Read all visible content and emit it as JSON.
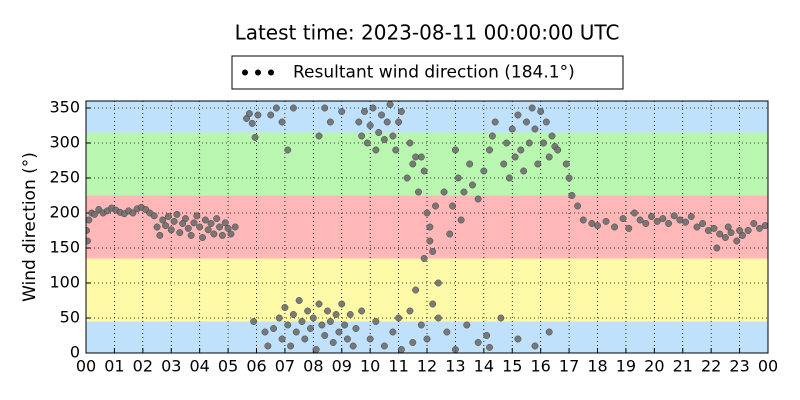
{
  "chart_data": {
    "type": "scatter",
    "title": "Latest time: 2023-08-11 00:00:00 UTC",
    "ylabel": "Wind direction (°)",
    "legend_loc": "upper center",
    "grid": true,
    "bands": [
      {
        "from": 0,
        "to": 45,
        "color": "#bfe1fb"
      },
      {
        "from": 45,
        "to": 135,
        "color": "#fffaa8"
      },
      {
        "from": 135,
        "to": 225,
        "color": "#ffb7b7"
      },
      {
        "from": 225,
        "to": 315,
        "color": "#b9f7b1"
      },
      {
        "from": 315,
        "to": 360,
        "color": "#bfe1fb"
      }
    ],
    "xlim": [
      0,
      24
    ],
    "ylim": [
      0,
      360
    ],
    "xticks": [
      {
        "value": 0,
        "label": "00"
      },
      {
        "value": 1,
        "label": "01"
      },
      {
        "value": 2,
        "label": "02"
      },
      {
        "value": 3,
        "label": "03"
      },
      {
        "value": 4,
        "label": "04"
      },
      {
        "value": 5,
        "label": "05"
      },
      {
        "value": 6,
        "label": "06"
      },
      {
        "value": 7,
        "label": "07"
      },
      {
        "value": 8,
        "label": "08"
      },
      {
        "value": 9,
        "label": "09"
      },
      {
        "value": 10,
        "label": "10"
      },
      {
        "value": 11,
        "label": "11"
      },
      {
        "value": 12,
        "label": "12"
      },
      {
        "value": 13,
        "label": "13"
      },
      {
        "value": 14,
        "label": "14"
      },
      {
        "value": 15,
        "label": "15"
      },
      {
        "value": 16,
        "label": "16"
      },
      {
        "value": 17,
        "label": "17"
      },
      {
        "value": 18,
        "label": "18"
      },
      {
        "value": 19,
        "label": "19"
      },
      {
        "value": 20,
        "label": "20"
      },
      {
        "value": 21,
        "label": "21"
      },
      {
        "value": 22,
        "label": "22"
      },
      {
        "value": 23,
        "label": "23"
      },
      {
        "value": 24,
        "label": "00"
      }
    ],
    "yticks": [
      0,
      50,
      100,
      150,
      200,
      250,
      300,
      350
    ],
    "series": [
      {
        "name": "Resultant wind direction (184.1°)",
        "color": "#6e6e6e",
        "x": [
          0.02,
          0.05,
          0.1,
          0.2,
          0.3,
          0.45,
          0.6,
          0.75,
          0.9,
          1.05,
          1.2,
          1.35,
          1.5,
          1.65,
          1.8,
          1.95,
          2.1,
          2.25,
          2.4,
          2.5,
          2.6,
          2.7,
          2.8,
          2.9,
          3.0,
          3.1,
          3.2,
          3.3,
          3.4,
          3.5,
          3.6,
          3.7,
          3.8,
          3.9,
          4.0,
          4.1,
          4.2,
          4.3,
          4.4,
          4.5,
          4.6,
          4.7,
          4.8,
          4.9,
          5.0,
          5.1,
          5.25,
          5.65,
          5.75,
          5.85,
          5.95,
          6.05,
          5.9,
          6.3,
          6.5,
          6.7,
          6.9,
          7.1,
          7.3,
          6.4,
          6.6,
          6.8,
          6.9,
          7.0,
          7.1,
          7.2,
          7.3,
          7.4,
          7.5,
          7.6,
          7.7,
          7.8,
          7.9,
          8.0,
          8.1,
          8.2,
          8.3,
          8.4,
          8.5,
          8.6,
          8.7,
          8.8,
          8.9,
          9.0,
          9.1,
          9.2,
          9.3,
          9.4,
          9.5,
          8.2,
          8.6,
          9.0,
          8.4,
          9.6,
          9.7,
          9.8,
          9.9,
          10.0,
          10.1,
          10.2,
          10.3,
          10.4,
          10.5,
          10.6,
          10.7,
          10.8,
          10.9,
          11.0,
          11.1,
          9.7,
          10.0,
          10.2,
          10.5,
          10.8,
          11.0,
          11.1,
          11.3,
          11.4,
          11.5,
          11.6,
          11.7,
          11.8,
          11.9,
          12.0,
          12.1,
          11.9,
          12.1,
          12.2,
          12.3,
          11.4,
          11.6,
          11.8,
          12.0,
          12.2,
          12.4,
          11.5,
          12.4,
          12.6,
          12.8,
          12.9,
          13.0,
          13.1,
          13.2,
          13.3,
          13.5,
          13.6,
          13.8,
          14.0,
          14.2,
          14.3,
          14.4,
          12.7,
          13.0,
          13.4,
          13.8,
          14.1,
          14.2,
          14.6,
          14.7,
          14.8,
          14.9,
          15.0,
          15.1,
          15.2,
          15.3,
          15.4,
          15.5,
          15.6,
          15.7,
          15.8,
          15.9,
          16.0,
          16.1,
          16.2,
          16.3,
          16.4,
          16.5,
          16.6,
          15.2,
          15.8,
          16.3,
          16.9,
          17.0,
          17.1,
          17.3,
          17.5,
          17.8,
          18.0,
          18.3,
          18.6,
          18.9,
          19.1,
          19.3,
          19.5,
          19.7,
          19.9,
          20.1,
          20.3,
          20.5,
          20.7,
          20.9,
          21.1,
          21.3,
          21.5,
          21.7,
          21.9,
          22.1,
          22.3,
          22.5,
          22.7,
          22.9,
          23.1,
          23.3,
          23.5,
          23.7,
          23.9,
          22.2,
          22.6,
          23.0
        ],
        "values": [
          175,
          160,
          190,
          200,
          198,
          205,
          200,
          203,
          207,
          204,
          201,
          199,
          203,
          200,
          206,
          208,
          205,
          200,
          196,
          180,
          168,
          190,
          182,
          195,
          176,
          188,
          198,
          172,
          185,
          192,
          178,
          168,
          186,
          196,
          180,
          165,
          190,
          176,
          185,
          170,
          192,
          180,
          168,
          186,
          178,
          170,
          180,
          335,
          342,
          328,
          308,
          340,
          45,
          30,
          340,
          350,
          330,
          290,
          350,
          10,
          35,
          50,
          20,
          65,
          40,
          10,
          55,
          30,
          75,
          45,
          20,
          60,
          35,
          50,
          5,
          70,
          40,
          25,
          60,
          45,
          15,
          55,
          30,
          70,
          40,
          20,
          55,
          10,
          35,
          310,
          330,
          345,
          350,
          330,
          310,
          345,
          300,
          325,
          350,
          290,
          315,
          340,
          305,
          330,
          355,
          310,
          290,
          330,
          345,
          60,
          20,
          45,
          10,
          30,
          50,
          5,
          250,
          300,
          270,
          280,
          230,
          280,
          260,
          200,
          180,
          135,
          160,
          145,
          210,
          60,
          90,
          40,
          20,
          70,
          100,
          15,
          50,
          230,
          170,
          210,
          290,
          250,
          190,
          230,
          270,
          240,
          220,
          260,
          290,
          310,
          330,
          30,
          5,
          40,
          15,
          25,
          8,
          50,
          270,
          300,
          250,
          320,
          280,
          340,
          290,
          260,
          330,
          300,
          350,
          320,
          270,
          345,
          300,
          330,
          280,
          310,
          295,
          290,
          20,
          10,
          30,
          270,
          250,
          225,
          210,
          190,
          185,
          182,
          188,
          180,
          192,
          178,
          200,
          190,
          185,
          195,
          188,
          192,
          185,
          196,
          190,
          187,
          195,
          180,
          185,
          175,
          178,
          170,
          165,
          172,
          160,
          168,
          175,
          185,
          178,
          182,
          150,
          180,
          175
        ]
      }
    ]
  }
}
